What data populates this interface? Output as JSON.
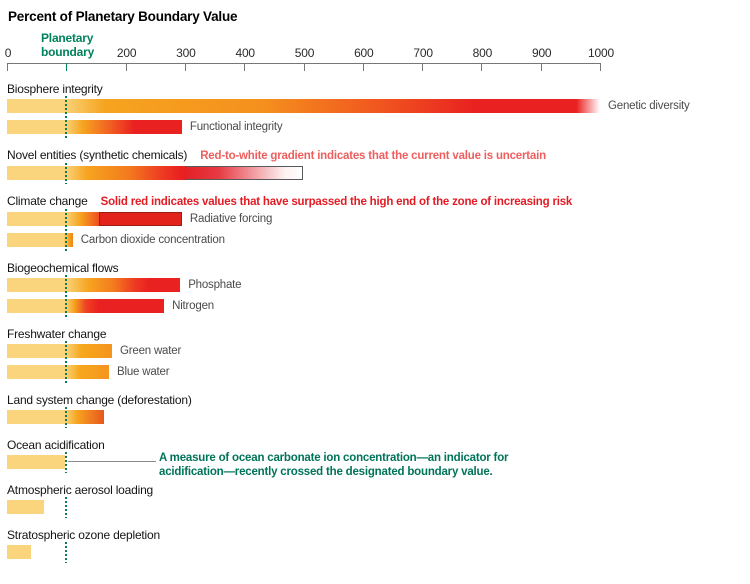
{
  "title": "Percent of Planetary Boundary Value",
  "axis": {
    "boundary_label": "Planetary boundary",
    "boundary_value": 100,
    "range": [
      0,
      1000
    ],
    "ticks": [
      {
        "value": 0,
        "label": "0"
      },
      {
        "value": 100,
        "label": "",
        "boundary": true
      },
      {
        "value": 200,
        "label": "200"
      },
      {
        "value": 300,
        "label": "300"
      },
      {
        "value": 400,
        "label": "400"
      },
      {
        "value": 500,
        "label": "500"
      },
      {
        "value": 600,
        "label": "600"
      },
      {
        "value": 700,
        "label": "700"
      },
      {
        "value": 800,
        "label": "800"
      },
      {
        "value": 900,
        "label": "900"
      },
      {
        "value": 1000,
        "label": "1000"
      }
    ]
  },
  "colors": {
    "yellow": "#FAD57E",
    "orange": "#F6A41F",
    "red": "#E92120",
    "solid_red_fill": "#E2231C",
    "solid_red_border": "#9B1B15",
    "uncertain_border": "#58595B",
    "boundary_green": "#00825C",
    "teal_annotation": "#00745A",
    "pink_annotation": "#EE5E5E",
    "red_annotation": "#E31B23",
    "axis_gray": "#777777"
  },
  "chart_data": {
    "type": "bar",
    "orientation": "horizontal",
    "unit": "percent of planetary boundary value",
    "xlim": [
      0,
      1000
    ],
    "boundary_value": 100,
    "grid": false,
    "sections": [
      {
        "label": "Biosphere integrity",
        "bars": [
          {
            "label": "Genetic diversity",
            "value": 1000,
            "fade_end": true,
            "stops": [
              [
                "#FAD57E",
                0
              ],
              [
                "#FAD57E",
                93
              ],
              [
                "#F6A41F",
                165
              ],
              [
                "#F5901E",
                430
              ],
              [
                "#F1581F",
                620
              ],
              [
                "#E92120",
                790
              ],
              [
                "#E92120",
                960
              ],
              [
                "rgba(233,33,32,0)",
                1000
              ]
            ]
          },
          {
            "label": "Functional integrity",
            "value": 295,
            "stops": [
              [
                "#FAD57E",
                0
              ],
              [
                "#FAD57E",
                97
              ],
              [
                "#F6A41F",
                128
              ],
              [
                "#EF4E22",
                185
              ],
              [
                "#E92120",
                215
              ],
              [
                "#E92120",
                295
              ]
            ]
          }
        ]
      },
      {
        "label": "Novel entities (synthetic chemicals)",
        "inline_annotation": {
          "text": "Red-to-white gradient indicates that the current value is uncertain",
          "color": "#EE5E5E"
        },
        "bars": [
          {
            "label": "",
            "value": 300,
            "stops": [
              [
                "#FAD57E",
                0
              ],
              [
                "#FAD57E",
                97
              ],
              [
                "#F6A41F",
                135
              ],
              [
                "#F37B1E",
                205
              ],
              [
                "#EE3A22",
                262
              ],
              [
                "#E92120",
                292
              ],
              [
                "#E92120",
                300
              ]
            ],
            "uncertainty": {
              "from": 300,
              "to": 500
            }
          }
        ]
      },
      {
        "label": "Climate change",
        "inline_annotation": {
          "text": "Solid red indicates values that have surpassed the high end of the zone of increasing risk",
          "color": "#E31B23"
        },
        "bars": [
          {
            "label": "Radiative forcing",
            "value": 295,
            "solid_box_from": 155,
            "stops": [
              [
                "#FAD57E",
                0
              ],
              [
                "#FAD57E",
                97
              ],
              [
                "#F6A41F",
                124
              ],
              [
                "#F04E22",
                155
              ]
            ]
          },
          {
            "label": "Carbon dioxide concentration",
            "value": 111,
            "stops": [
              [
                "#FAD57E",
                0
              ],
              [
                "#FAD57E",
                96
              ],
              [
                "#F7A81E",
                104
              ],
              [
                "#F28320",
                111
              ]
            ]
          }
        ]
      },
      {
        "label": "Biogeochemical flows",
        "bars": [
          {
            "label": "Phosphate",
            "value": 292,
            "stops": [
              [
                "#FAD57E",
                0
              ],
              [
                "#FAD57E",
                97
              ],
              [
                "#F6A41F",
                138
              ],
              [
                "#F37B1E",
                180
              ],
              [
                "#EE3A22",
                215
              ],
              [
                "#E92120",
                240
              ],
              [
                "#E92120",
                292
              ]
            ]
          },
          {
            "label": "Nitrogen",
            "value": 265,
            "stops": [
              [
                "#FAD57E",
                0
              ],
              [
                "#FAD57E",
                97
              ],
              [
                "#F6A41F",
                113
              ],
              [
                "#EE4222",
                133
              ],
              [
                "#E92120",
                155
              ],
              [
                "#E92120",
                265
              ]
            ]
          }
        ]
      },
      {
        "label": "Freshwater change",
        "bars": [
          {
            "label": "Green water",
            "value": 177,
            "stops": [
              [
                "#FAD57E",
                0
              ],
              [
                "#FAD57E",
                97
              ],
              [
                "#F6A81E",
                125
              ],
              [
                "#F5941E",
                177
              ]
            ]
          },
          {
            "label": "Blue water",
            "value": 172,
            "stops": [
              [
                "#FAD57E",
                0
              ],
              [
                "#FAD57E",
                97
              ],
              [
                "#F6A81E",
                122
              ],
              [
                "#F5941E",
                172
              ]
            ]
          }
        ]
      },
      {
        "label": "Land system change (deforestation)",
        "bars": [
          {
            "label": "",
            "value": 163,
            "stops": [
              [
                "#FAD57E",
                0
              ],
              [
                "#FAD57E",
                97
              ],
              [
                "#F6A41F",
                118
              ],
              [
                "#F07E1F",
                140
              ],
              [
                "#E8581E",
                163
              ]
            ]
          }
        ]
      },
      {
        "label": "Ocean acidification",
        "callout": {
          "text": "A measure of ocean carbonate ion concentration—an indicator for acidification—recently crossed the designated boundary value.",
          "color": "#00745A"
        },
        "bars": [
          {
            "label": "",
            "value": 98,
            "stops": [
              [
                "#FAD57E",
                0
              ],
              [
                "#FAD57E",
                98
              ]
            ]
          }
        ]
      },
      {
        "label": "Atmospheric aerosol loading",
        "bars": [
          {
            "label": "",
            "value": 62,
            "stops": [
              [
                "#FAD57E",
                0
              ],
              [
                "#FAD57E",
                62
              ]
            ]
          }
        ]
      },
      {
        "label": "Stratospheric ozone depletion",
        "bars": [
          {
            "label": "",
            "value": 40,
            "stops": [
              [
                "#FAD57E",
                0
              ],
              [
                "#FAD57E",
                40
              ]
            ]
          }
        ]
      }
    ]
  }
}
